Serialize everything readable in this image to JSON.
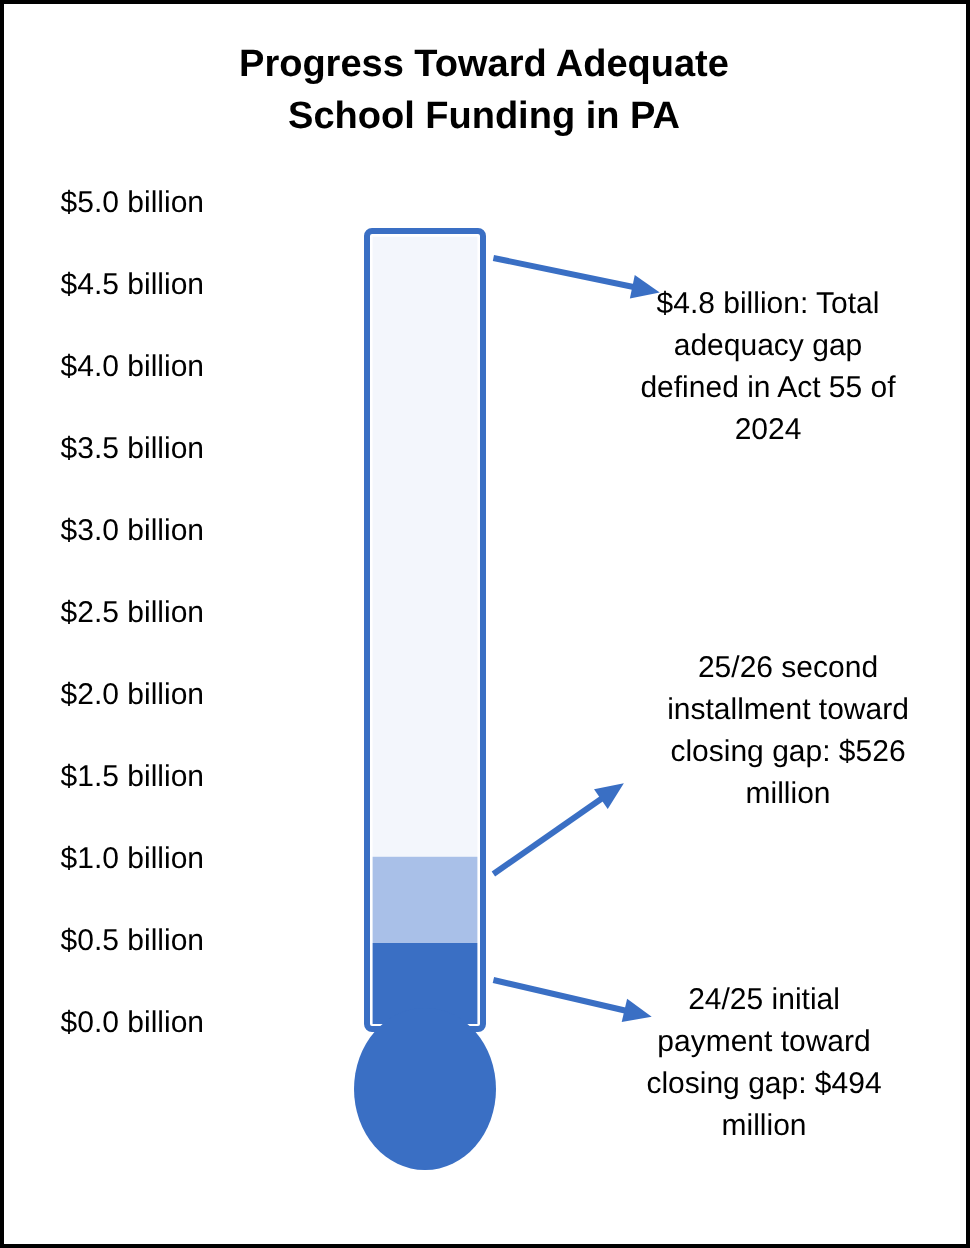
{
  "chart_data": {
    "type": "bar",
    "title": "Progress Toward Adequate School Funding in PA",
    "categories": [
      null
    ],
    "stacked": true,
    "series": [
      {
        "color": "#3a6fc4",
        "values": [
          0.494
        ]
      },
      {
        "color": "#a9c0e8",
        "values": [
          0.526
        ]
      },
      {
        "color": "#f3f6fc",
        "values": [
          3.78
        ]
      }
    ],
    "ylim": [
      0,
      5
    ],
    "yticks": [
      {
        "value": 0,
        "label": "$0.0 billion"
      },
      {
        "value": 0.5,
        "label": "$0.5 billion"
      },
      {
        "value": 1,
        "label": "$1.0 billion"
      },
      {
        "value": 1.5,
        "label": "$1.5 billion"
      },
      {
        "value": 2,
        "label": "$2.0 billion"
      },
      {
        "value": 2.5,
        "label": "$2.5 billion"
      },
      {
        "value": 3,
        "label": "$3.0 billion"
      },
      {
        "value": 3.5,
        "label": "$3.5 billion"
      },
      {
        "value": 4,
        "label": "$4.0 billion"
      },
      {
        "value": 4.5,
        "label": "$4.5 billion"
      },
      {
        "value": 5,
        "label": "$5.0 billion"
      }
    ],
    "grid": false,
    "legend": false,
    "annotations": [
      "$4.8 billion: Total adequacy gap defined in Act 55 of 2024",
      "25/26 second installment toward closing gap: $526 million",
      "24/25 initial payment toward closing gap: $494 million"
    ]
  }
}
